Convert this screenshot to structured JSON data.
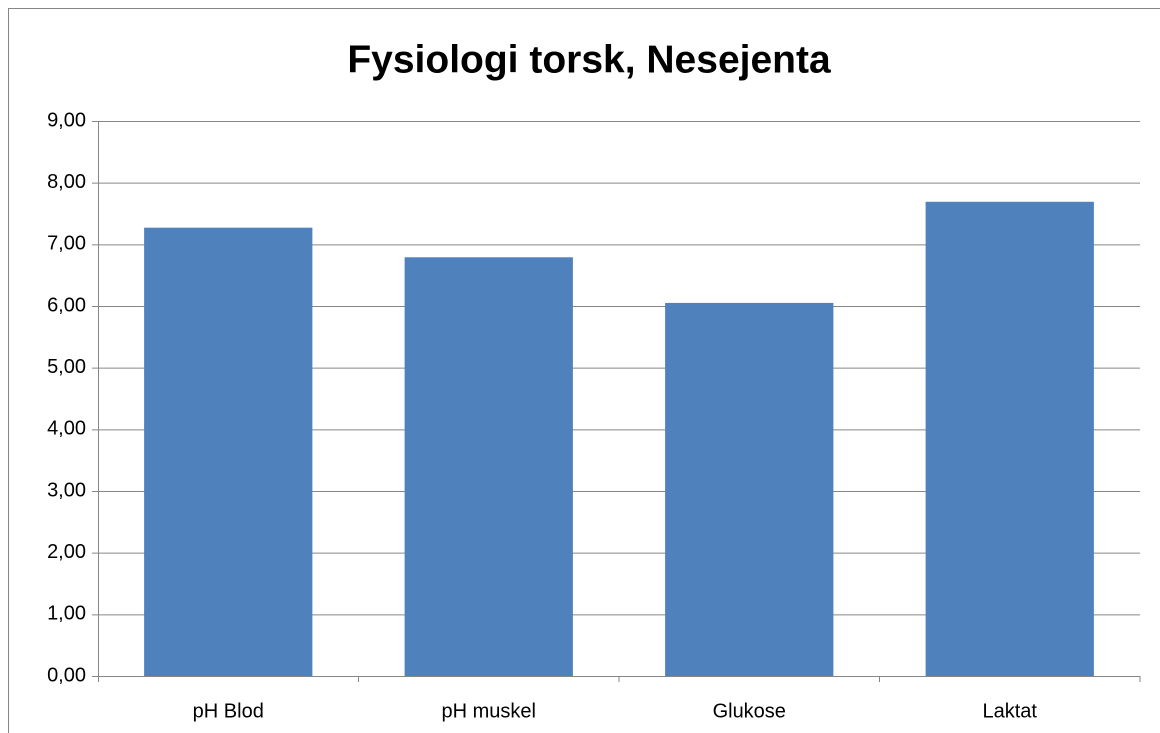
{
  "chart_data": {
    "type": "bar",
    "title": "Fysiologi torsk, Nesejenta",
    "categories": [
      "pH Blod",
      "pH muskel",
      "Glukose",
      "Laktat"
    ],
    "values": [
      7.27,
      6.79,
      6.05,
      7.69
    ],
    "color": "#4f81bd",
    "ylim": [
      0,
      9
    ],
    "yticks": [
      {
        "value": 0,
        "label": "0,00"
      },
      {
        "value": 1,
        "label": "1,00"
      },
      {
        "value": 2,
        "label": "2,00"
      },
      {
        "value": 3,
        "label": "3,00"
      },
      {
        "value": 4,
        "label": "4,00"
      },
      {
        "value": 5,
        "label": "5,00"
      },
      {
        "value": 6,
        "label": "6,00"
      },
      {
        "value": 7,
        "label": "7,00"
      },
      {
        "value": 8,
        "label": "8,00"
      },
      {
        "value": 9,
        "label": "9,00"
      }
    ],
    "grid": true
  }
}
